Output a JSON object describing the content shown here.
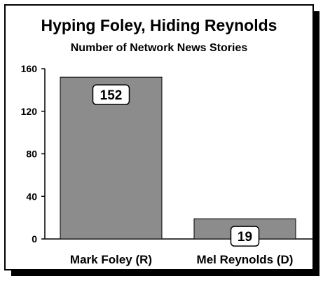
{
  "chart_data": {
    "type": "bar",
    "title": "Hyping Foley, Hiding Reynolds",
    "subtitle": "Number of Network News Stories",
    "categories": [
      "Mark Foley (R)",
      "Mel Reynolds (D)"
    ],
    "values": [
      152,
      19
    ],
    "data_labels": [
      "152",
      "19"
    ],
    "ylim": [
      0,
      160
    ],
    "yticks": [
      0,
      40,
      80,
      120,
      160
    ],
    "ytick_labels": [
      "0",
      "40",
      "80",
      "120",
      "160"
    ],
    "xlabel": "",
    "ylabel": "",
    "grid": false,
    "legend": "none",
    "colors": {
      "bar": "#8c8c8c",
      "frame_shadow": "#000000",
      "background": "#ffffff"
    }
  }
}
